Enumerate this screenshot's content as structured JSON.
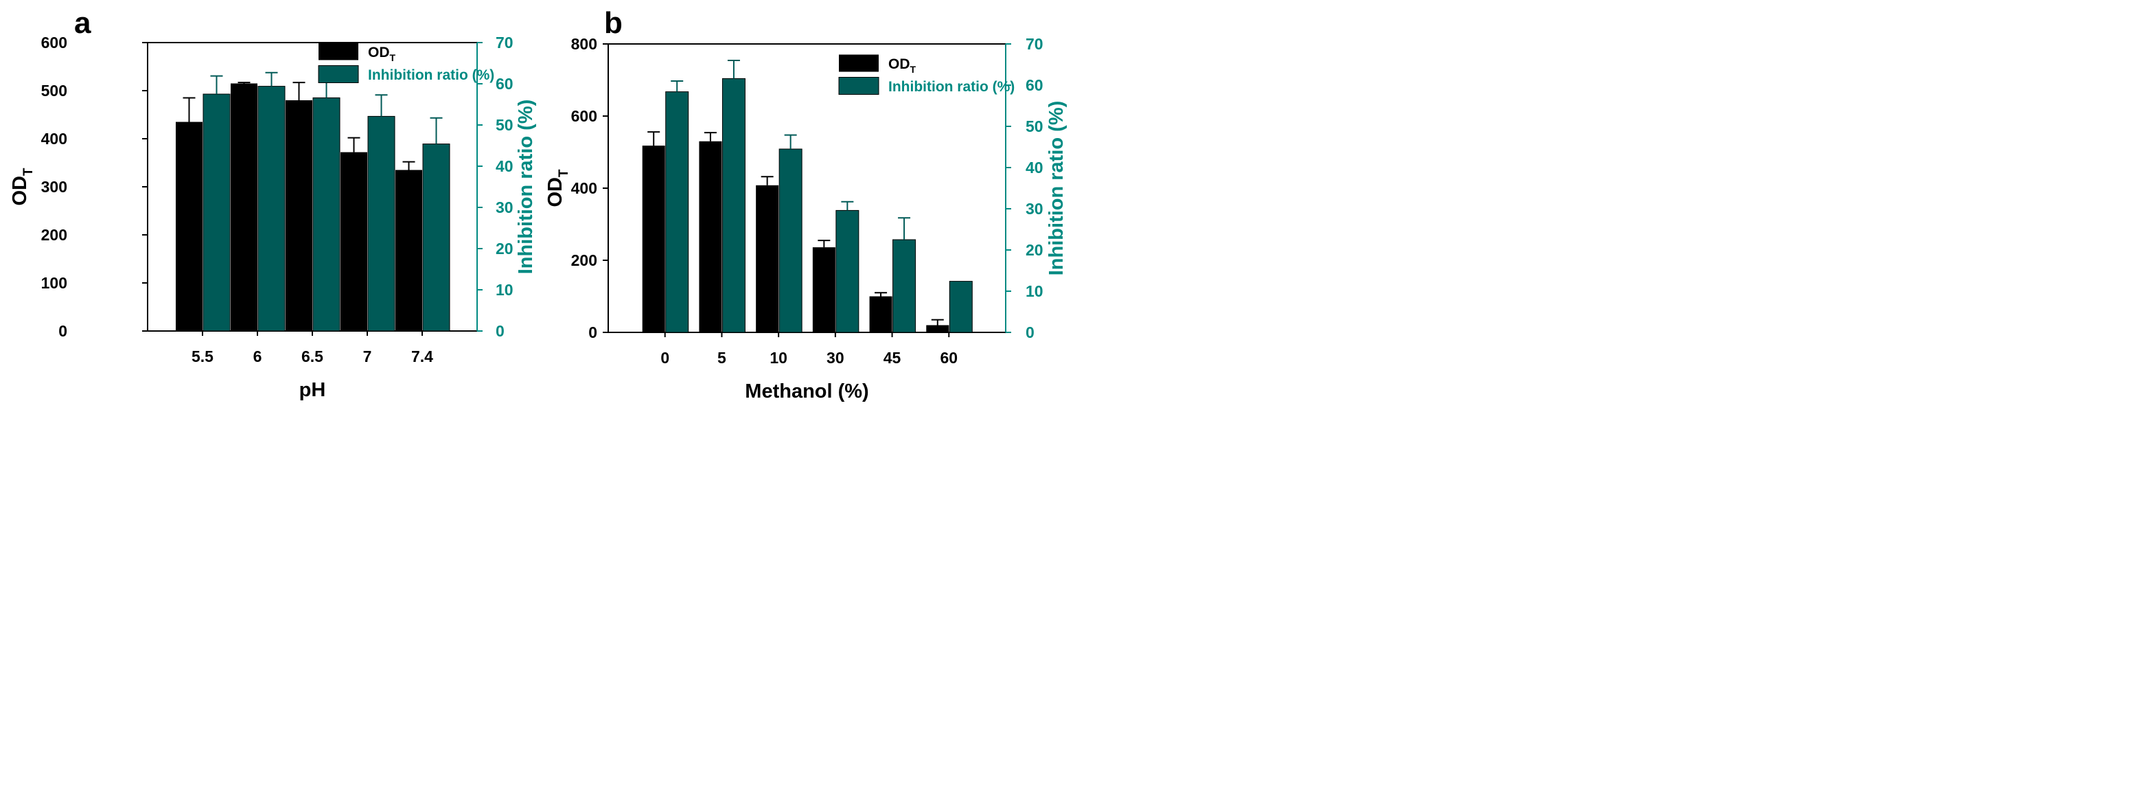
{
  "colors": {
    "od": "#000000",
    "inhibition": "#005a57",
    "axis_right": "#008a82",
    "axis": "#000000"
  },
  "chart_data": [
    {
      "panel_label": "a",
      "type": "bar",
      "xlabel": "pH",
      "categories": [
        "5.5",
        "6",
        "6.5",
        "7",
        "7.4"
      ],
      "ylabel_main": "OD",
      "ylabel_sub": "T",
      "y2label": "Inhibition ratio (%)",
      "ylim": [
        0,
        600
      ],
      "yticks": [
        0,
        100,
        200,
        300,
        400,
        500,
        600
      ],
      "y2lim": [
        0,
        70
      ],
      "y2ticks": [
        0,
        10,
        20,
        30,
        40,
        50,
        60,
        70
      ],
      "legend": {
        "placement": "top-right",
        "od_main": "OD",
        "od_sub": "T",
        "inhibition": "Inhibition ratio (%)"
      },
      "series": [
        {
          "name": "OD_T",
          "axis": "left",
          "values": [
            435,
            515,
            480,
            372,
            335
          ],
          "errors": [
            50,
            2,
            37,
            30,
            17
          ]
        },
        {
          "name": "Inhibition ratio (%)",
          "axis": "right",
          "values": [
            57.5,
            59.4,
            56.6,
            52.1,
            45.4
          ],
          "errors": [
            4.4,
            3.3,
            4.2,
            5.2,
            6.3
          ]
        }
      ]
    },
    {
      "panel_label": "b",
      "type": "bar",
      "xlabel": "Methanol (%)",
      "categories": [
        "0",
        "5",
        "10",
        "30",
        "45",
        "60"
      ],
      "ylabel_main": "OD",
      "ylabel_sub": "T",
      "y2label": "Inhibition ratio (%)",
      "ylim": [
        0,
        800
      ],
      "yticks": [
        0,
        200,
        400,
        600,
        800
      ],
      "y2lim": [
        0,
        70
      ],
      "y2ticks": [
        0,
        10,
        20,
        30,
        40,
        50,
        60,
        70
      ],
      "legend": {
        "placement": "top-right",
        "od_main": "OD",
        "od_sub": "T",
        "inhibition": "Inhibition ratio (%)"
      },
      "series": [
        {
          "name": "OD_T",
          "axis": "left",
          "values": [
            518,
            530,
            408,
            236,
            100,
            20
          ],
          "errors": [
            38,
            24,
            24,
            19,
            10,
            15
          ]
        },
        {
          "name": "Inhibition ratio (%)",
          "axis": "right",
          "values": [
            58.4,
            61.6,
            44.5,
            29.6,
            22.5,
            12.4
          ],
          "errors": [
            2.6,
            4.4,
            3.4,
            2.1,
            5.3,
            0
          ]
        }
      ]
    }
  ]
}
